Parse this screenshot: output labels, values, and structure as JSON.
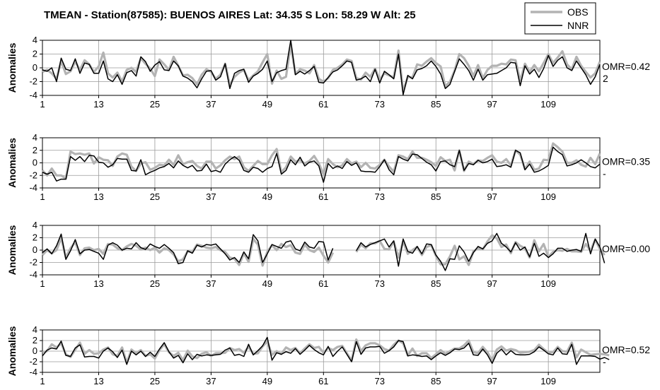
{
  "title": "TMEAN - Station(87585): BUENOS AIRES  Lat: 34.35 S  Lon: 58.29 W  Alt: 25",
  "legend": [
    {
      "label": "OBS",
      "color": "#b3b3b3"
    },
    {
      "label": "NNR",
      "color": "#000000"
    }
  ],
  "chart_data": [
    {
      "type": "line",
      "ylabel": "Anomalies",
      "annotation": "OMR=0.42",
      "annotation2": "2",
      "ylim": [
        -4,
        4
      ],
      "yticks": [
        "4",
        "2",
        "0",
        "-2",
        "-4"
      ],
      "xticks": [
        "1",
        "13",
        "25",
        "37",
        "49",
        "61",
        "73",
        "85",
        "97",
        "109"
      ],
      "x_range": [
        1,
        120
      ],
      "series": [
        {
          "name": "OBS",
          "values": [
            -0.6,
            -0.3,
            -0.8,
            -1.6,
            1.0,
            -0.9,
            -0.5,
            0.9,
            -0.3,
            1.1,
            0.5,
            -0.6,
            0.2,
            2.2,
            -0.8,
            -1.4,
            -0.7,
            -2.0,
            -0.3,
            0.0,
            -0.6,
            1.4,
            0.6,
            -0.1,
            -1.2,
            1.2,
            0.5,
            -0.3,
            1.6,
            0.3,
            -1.1,
            -1.0,
            -1.5,
            -2.4,
            -1.0,
            -0.2,
            -0.6,
            -1.6,
            -1.0,
            0.6,
            -2.5,
            -1.3,
            -0.7,
            -0.3,
            -1.8,
            -1.1,
            -0.5,
            0.8,
            2.0,
            -2.3,
            -0.4,
            -1.6,
            -1.3,
            3.4,
            -0.9,
            -0.2,
            -0.4,
            -0.8,
            0.4,
            -1.6,
            -2.0,
            -1.5,
            -0.3,
            0.0,
            0.5,
            1.2,
            1.0,
            -1.5,
            -1.7,
            -0.7,
            -1.3,
            -0.1,
            -1.7,
            -0.8,
            -1.1,
            -1.4,
            2.5,
            -3.4,
            -1.3,
            -1.4,
            0.5,
            0.3,
            0.9,
            1.4,
            0.7,
            0.2,
            -2.7,
            -2.0,
            -0.4,
            2.0,
            1.4,
            0.3,
            -1.2,
            0.4,
            -1.5,
            -0.3,
            0.3,
            0.3,
            0.6,
            0.5,
            1.2,
            1.1,
            -1.9,
            0.6,
            -0.6,
            0.4,
            -0.5,
            0.7,
            2.0,
            0.7,
            1.5,
            2.4,
            0.5,
            -0.2,
            1.6,
            0.3,
            -0.6,
            -1.4,
            -0.8,
            0.9
          ]
        },
        {
          "name": "NNR",
          "values": [
            -0.3,
            -0.5,
            0.0,
            -2.0,
            1.4,
            -0.2,
            -0.4,
            1.3,
            -0.8,
            0.7,
            0.5,
            -0.8,
            -0.8,
            1.0,
            -1.6,
            -2.0,
            -1.0,
            -2.4,
            -0.7,
            -0.4,
            -1.2,
            1.6,
            0.9,
            -0.5,
            0.4,
            0.9,
            -0.3,
            -0.4,
            1.0,
            0.3,
            -1.2,
            -1.5,
            -2.0,
            -2.9,
            -1.6,
            -0.5,
            -0.4,
            -1.8,
            -1.3,
            0.6,
            -3.0,
            -0.8,
            -0.4,
            -0.2,
            -2.1,
            -1.2,
            -0.8,
            -0.2,
            1.0,
            -2.0,
            -0.7,
            -0.4,
            -0.2,
            4.0,
            -1.0,
            -0.5,
            -0.9,
            -0.4,
            0.2,
            -2.1,
            -2.2,
            -1.4,
            -0.6,
            -0.3,
            0.3,
            1.0,
            0.8,
            -1.8,
            -1.6,
            -1.2,
            -2.0,
            -0.2,
            -2.2,
            -0.5,
            -1.0,
            -1.6,
            2.0,
            -3.9,
            -1.1,
            -1.6,
            -0.3,
            -0.1,
            0.3,
            1.0,
            0.2,
            -0.9,
            -3.0,
            -2.4,
            -0.5,
            1.3,
            0.5,
            -0.4,
            -1.8,
            -0.2,
            -1.8,
            -1.0,
            -0.9,
            -0.8,
            -0.4,
            0.0,
            0.8,
            0.7,
            -2.6,
            0.3,
            -0.9,
            -0.2,
            -1.4,
            -0.1,
            1.8,
            0.2,
            1.1,
            1.6,
            0.0,
            -0.4,
            1.0,
            0.0,
            -1.0,
            -2.4,
            -1.3,
            0.5
          ]
        }
      ]
    },
    {
      "type": "line",
      "ylabel": "Anomalies",
      "annotation": "OMR=0.35",
      "annotation2": "-",
      "ylim": [
        -4,
        4
      ],
      "yticks": [
        "4",
        "2",
        "0",
        "-2",
        "-4"
      ],
      "xticks": [
        "1",
        "13",
        "25",
        "37",
        "49",
        "61",
        "73",
        "85",
        "97",
        "109"
      ],
      "x_range": [
        1,
        120
      ],
      "series": [
        {
          "name": "OBS",
          "values": [
            -1.2,
            -2.0,
            -0.9,
            -2.0,
            -2.0,
            -2.5,
            1.8,
            1.4,
            1.5,
            1.3,
            1.5,
            -0.1,
            0.9,
            0.5,
            0.4,
            -0.5,
            1.0,
            1.5,
            1.3,
            -0.6,
            -1.3,
            -0.1,
            0.1,
            -1.1,
            -0.8,
            -0.3,
            -0.4,
            0.5,
            -0.3,
            1.2,
            -0.2,
            0.1,
            0.3,
            -0.5,
            -0.9,
            0.2,
            0.2,
            -0.9,
            -0.4,
            0.4,
            1.0,
            0.6,
            1.0,
            -0.7,
            -1.3,
            -0.5,
            0.3,
            -0.2,
            -0.2,
            1.2,
            2.2,
            -1.5,
            -0.7,
            1.0,
            0.2,
            0.4,
            -0.1,
            0.3,
            1.1,
            -0.1,
            -1.8,
            0.6,
            -0.2,
            -0.7,
            -0.4,
            0.6,
            -0.1,
            0.2,
            -0.7,
            0.0,
            -0.8,
            -0.9,
            -0.3,
            0.5,
            -0.6,
            -1.4,
            1.2,
            1.0,
            0.6,
            1.8,
            0.8,
            0.8,
            0.5,
            0.1,
            -0.5,
            0.9,
            0.3,
            0.5,
            -1.2,
            2.0,
            -1.3,
            0.2,
            -0.2,
            0.4,
            0.3,
            0.8,
            1.2,
            0.2,
            0.0,
            0.6,
            -0.4,
            2.0,
            1.3,
            -1.0,
            0.2,
            -1.1,
            -0.9,
            0.5,
            0.4,
            3.1,
            2.5,
            1.8,
            0.0,
            0.0,
            0.4,
            -0.3,
            -0.6,
            0.8,
            -0.2,
            1.5
          ]
        },
        {
          "name": "NNR",
          "values": [
            -1.5,
            -1.8,
            -1.5,
            -2.9,
            -2.6,
            -2.6,
            1.0,
            0.4,
            1.0,
            0.2,
            1.2,
            1.1,
            0.1,
            0.0,
            -0.7,
            -0.3,
            0.7,
            0.6,
            0.6,
            -1.2,
            -1.3,
            0.5,
            -1.9,
            -1.5,
            -1.2,
            -0.8,
            -0.6,
            -0.1,
            -0.8,
            0.3,
            -0.4,
            -0.8,
            -0.4,
            -1.3,
            -1.2,
            -0.2,
            -1.4,
            -1.2,
            -1.5,
            -0.2,
            0.5,
            1.0,
            0.4,
            -1.2,
            -1.5,
            -0.7,
            -0.9,
            -1.5,
            -0.9,
            -0.6,
            1.5,
            -1.8,
            -1.2,
            0.5,
            -0.3,
            0.9,
            -0.5,
            0.1,
            0.3,
            -0.5,
            -3.1,
            -0.1,
            -0.9,
            -0.5,
            -0.9,
            0.2,
            -0.4,
            0.0,
            -1.3,
            -1.4,
            -1.4,
            -1.5,
            -0.6,
            0.5,
            -1.1,
            -1.9,
            1.0,
            0.6,
            0.3,
            1.4,
            1.3,
            0.7,
            0.1,
            -0.3,
            -1.3,
            0.2,
            0.3,
            -0.3,
            -0.6,
            2.0,
            -1.2,
            -0.1,
            -0.3,
            0.4,
            0.0,
            0.2,
            0.6,
            -0.6,
            -0.5,
            -0.3,
            -0.7,
            2.0,
            1.6,
            -1.1,
            -0.2,
            -1.5,
            -1.3,
            -0.9,
            -0.4,
            2.5,
            1.8,
            1.3,
            -0.5,
            -0.3,
            0.0,
            0.5,
            0.0,
            -0.6,
            -0.8,
            -0.2
          ]
        }
      ]
    },
    {
      "type": "line",
      "ylabel": "Anomalies",
      "annotation": "OMR=0.00",
      "annotation2": "",
      "ylim": [
        -4,
        4
      ],
      "yticks": [
        "4",
        "2",
        "0",
        "-2",
        "-4"
      ],
      "xticks": [
        "1",
        "13",
        "25",
        "37",
        "49",
        "61",
        "73",
        "85",
        "97",
        "109"
      ],
      "x_range": [
        1,
        120
      ],
      "series": [
        {
          "name": "OBS",
          "values": [
            -0.8,
            0.0,
            -0.5,
            0.0,
            2.0,
            -1.2,
            0.3,
            1.3,
            -0.8,
            0.3,
            0.4,
            0.0,
            0.2,
            -0.6,
            1.0,
            0.9,
            0.3,
            0.0,
            0.6,
            1.0,
            0.7,
            0.1,
            0.4,
            0.0,
            0.4,
            -0.4,
            0.3,
            0.0,
            -0.7,
            -1.8,
            -1.5,
            -0.2,
            -0.3,
            0.9,
            0.7,
            0.4,
            0.3,
            0.5,
            0.0,
            -0.3,
            -1.2,
            -1.4,
            -2.4,
            -0.5,
            -1.9,
            1.8,
            0.9,
            -2.5,
            -0.3,
            0.8,
            0.0,
            1.0,
            0.5,
            0.8,
            -0.4,
            -0.6,
            0.9,
            0.0,
            -0.3,
            0.4,
            -0.9,
            -2.0,
            -0.4,
            null,
            null,
            null,
            null,
            -0.3,
            0.9,
            0.3,
            1.1,
            1.1,
            1.5,
            0.2,
            0.1,
            1.4,
            -1.2,
            1.4,
            -0.6,
            0.0,
            0.5,
            -0.8,
            0.5,
            0.8,
            -0.9,
            -2.3,
            -2.3,
            -1.0,
            0.7,
            -1.5,
            -1.0,
            -2.4,
            -0.2,
            0.3,
            0.1,
            1.4,
            2.4,
            1.9,
            0.5,
            0.9,
            -0.5,
            1.3,
            0.7,
            0.3,
            -1.2,
            1.6,
            -0.2,
            1.0,
            -1.1,
            -0.3,
            0.0,
            -0.1,
            0.2,
            -0.2,
            -0.2,
            -0.3,
            1.0,
            -0.1,
            1.7,
            0.2,
            -0.8
          ]
        },
        {
          "name": "NNR",
          "values": [
            -0.4,
            0.2,
            -0.6,
            0.7,
            2.6,
            -1.5,
            -0.1,
            1.7,
            -0.6,
            0.0,
            0.1,
            -0.2,
            -0.5,
            -1.5,
            0.8,
            1.2,
            0.8,
            0.0,
            0.3,
            0.2,
            1.2,
            0.4,
            0.1,
            1.0,
            0.6,
            0.3,
            0.9,
            0.3,
            -0.4,
            -2.2,
            -2.0,
            -0.1,
            -0.5,
            0.8,
            0.5,
            0.9,
            0.8,
            1.0,
            0.2,
            -0.6,
            -1.6,
            -1.2,
            -2.0,
            -0.3,
            -1.4,
            2.5,
            1.5,
            -2.0,
            -0.6,
            0.9,
            0.6,
            0.3,
            1.3,
            1.5,
            0.2,
            -0.1,
            1.3,
            0.5,
            0.3,
            1.4,
            1.3,
            -1.6,
            0.3,
            null,
            null,
            null,
            null,
            -0.1,
            1.2,
            0.5,
            0.9,
            1.2,
            1.5,
            1.8,
            0.5,
            1.5,
            -2.6,
            1.8,
            -0.2,
            -0.5,
            0.6,
            -0.6,
            1.0,
            0.9,
            -0.8,
            -1.8,
            -3.3,
            -1.4,
            -1.5,
            0.7,
            -0.3,
            -1.8,
            -0.4,
            0.6,
            0.2,
            1.1,
            1.5,
            2.7,
            1.1,
            0.5,
            -0.3,
            1.2,
            0.0,
            0.5,
            -1.1,
            1.1,
            -1.0,
            -0.5,
            -1.2,
            -0.6,
            0.3,
            0.3,
            -0.2,
            0.0,
            0.1,
            -0.2,
            2.7,
            -0.6,
            1.8,
            0.5,
            -2.1
          ]
        }
      ]
    },
    {
      "type": "line",
      "ylabel": "Anomalies",
      "annotation": "OMR=0.52",
      "annotation2": "-",
      "ylim": [
        -4,
        4
      ],
      "yticks": [
        "4",
        "2",
        "0",
        "-2",
        "-4"
      ],
      "xticks": [
        "1",
        "13",
        "25",
        "37",
        "49",
        "61",
        "73",
        "85",
        "97",
        "109"
      ],
      "x_range": [
        1,
        120
      ],
      "series": [
        {
          "name": "OBS",
          "values": [
            -0.2,
            0.0,
            1.3,
            0.7,
            1.5,
            -0.6,
            -1.1,
            0.3,
            1.6,
            -0.5,
            0.2,
            -0.5,
            -0.4,
            0.3,
            0.7,
            -0.6,
            -0.9,
            0.7,
            -2.2,
            0.3,
            -0.4,
            0.2,
            -0.9,
            -0.6,
            -1.4,
            0.2,
            1.3,
            -0.2,
            -0.9,
            -0.3,
            -1.7,
            0.1,
            -1.0,
            -1.3,
            -0.5,
            -0.2,
            -0.9,
            -0.4,
            -0.4,
            -0.3,
            0.6,
            0.2,
            0.4,
            -0.3,
            0.8,
            -0.5,
            -0.4,
            0.9,
            1.8,
            -0.7,
            0.0,
            -0.5,
            0.7,
            0.2,
            0.6,
            -0.4,
            0.5,
            1.3,
            0.6,
            0.8,
            -0.3,
            0.6,
            0.2,
            0.8,
            1.0,
            -0.4,
            -1.8,
            2.2,
            0.0,
            1.1,
            1.5,
            1.5,
            1.1,
            0.4,
            0.1,
            1.2,
            2.0,
            1.5,
            -0.8,
            0.5,
            -0.9,
            -0.4,
            -0.4,
            -1.3,
            -0.6,
            0.2,
            -0.5,
            0.0,
            0.5,
            0.5,
            1.1,
            2.0,
            -0.2,
            -0.4,
            0.8,
            -0.2,
            -1.8,
            0.3,
            0.9,
            0.1,
            0.4,
            0.2,
            -0.3,
            -0.2,
            -0.1,
            0.2,
            1.2,
            0.4,
            -0.3,
            -0.2,
            0.8,
            0.0,
            -0.1,
            1.6,
            -1.2,
            0.3,
            -0.2,
            -0.7,
            -0.6,
            -0.5,
            -0.6,
            -0.8
          ]
        },
        {
          "name": "NNR",
          "values": [
            -0.9,
            0.2,
            0.6,
            0.4,
            1.9,
            -0.8,
            -1.0,
            0.6,
            1.2,
            -1.1,
            -1.0,
            -1.0,
            -1.3,
            0.0,
            0.6,
            -0.1,
            -1.2,
            0.2,
            -2.5,
            0.0,
            -0.7,
            0.0,
            -1.0,
            -0.2,
            -1.0,
            0.4,
            1.6,
            -0.1,
            -1.3,
            -0.8,
            -2.2,
            -0.5,
            -1.6,
            -0.6,
            -0.9,
            -0.7,
            -0.8,
            -0.7,
            -0.6,
            0.2,
            0.6,
            -0.8,
            -0.6,
            -1.0,
            1.3,
            -0.7,
            0.1,
            1.0,
            2.6,
            -1.7,
            -0.3,
            -0.6,
            -0.1,
            -0.4,
            0.5,
            -0.6,
            0.2,
            1.1,
            0.3,
            -0.3,
            -0.7,
            0.9,
            -1.0,
            0.0,
            0.8,
            -0.6,
            -2.0,
            1.8,
            -0.6,
            0.6,
            0.8,
            0.8,
            0.9,
            -0.4,
            0.1,
            0.8,
            2.0,
            1.8,
            -0.9,
            -0.7,
            -0.8,
            -1.0,
            -0.9,
            -1.6,
            -0.9,
            -0.3,
            -0.8,
            -0.3,
            0.4,
            0.3,
            0.6,
            1.5,
            -0.7,
            -0.8,
            0.4,
            -0.7,
            -2.3,
            -0.4,
            0.4,
            -0.7,
            0.1,
            -0.6,
            -0.7,
            -0.7,
            -0.6,
            -0.1,
            0.8,
            0.2,
            -0.5,
            -0.7,
            0.6,
            -0.5,
            -0.6,
            1.3,
            -2.5,
            -0.9,
            -0.9,
            -0.9,
            -1.0,
            -1.5,
            -1.2,
            -1.6
          ]
        }
      ]
    }
  ]
}
